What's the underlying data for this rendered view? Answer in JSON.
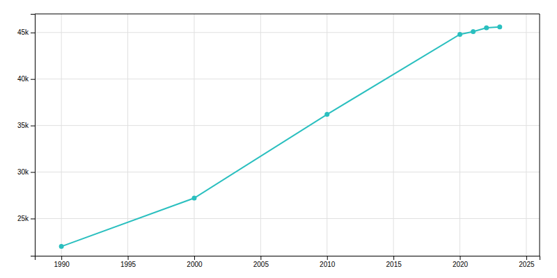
{
  "chart_data": {
    "type": "line",
    "x": [
      1990,
      2000,
      2010,
      2020,
      2021,
      2022,
      2023
    ],
    "values": [
      22000,
      27200,
      36200,
      44800,
      45100,
      45500,
      45600
    ],
    "color": "#2abfbf",
    "marker": "circle",
    "xlim": [
      1988,
      2026
    ],
    "ylim": [
      21000,
      47000
    ],
    "xticks": [
      1990,
      1995,
      2000,
      2005,
      2010,
      2015,
      2020,
      2025
    ],
    "yticks": [
      {
        "value": 25000,
        "label": "25k"
      },
      {
        "value": 30000,
        "label": "30k"
      },
      {
        "value": 35000,
        "label": "35k"
      },
      {
        "value": 40000,
        "label": "40k"
      },
      {
        "value": 45000,
        "label": "45k"
      }
    ],
    "grid": true
  }
}
